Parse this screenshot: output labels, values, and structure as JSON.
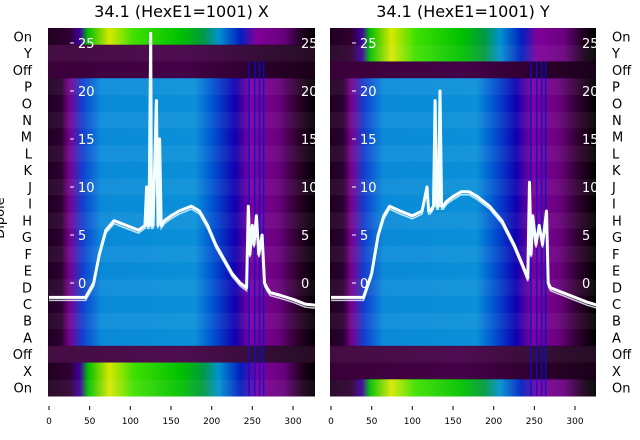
{
  "chart_data": [
    {
      "type": "heatmap",
      "title": "34.1 (HexE1=1001) X",
      "ylabel": "Dipole",
      "row_labels": [
        "On",
        "Y",
        "Off",
        "P",
        "O",
        "N",
        "M",
        "L",
        "K",
        "J",
        "I",
        "H",
        "G",
        "F",
        "E",
        "D",
        "C",
        "B",
        "A",
        "Off",
        "X",
        "On"
      ],
      "bright_rows": [
        0,
        20,
        21
      ],
      "xlim": [
        0,
        327
      ],
      "x_ticks": [
        0,
        50,
        100,
        150,
        200,
        250,
        300
      ],
      "overlay_ylim": [
        -11.8,
        26.6
      ],
      "overlay_ticks": [
        0,
        5,
        10,
        15,
        20,
        25
      ],
      "line": {
        "x": [
          0,
          20,
          45,
          55,
          62,
          70,
          80,
          95,
          110,
          118,
          120,
          121,
          123,
          125,
          126,
          128,
          132,
          134,
          136,
          138,
          142,
          150,
          160,
          175,
          185,
          195,
          205,
          215,
          225,
          235,
          243,
          245,
          247,
          250,
          252,
          255,
          258,
          262,
          265,
          268,
          272,
          285,
          300,
          315,
          327
        ],
        "y": [
          -1.5,
          -1.5,
          -1.5,
          0,
          3,
          5.5,
          6.5,
          6,
          5.5,
          6,
          10,
          6,
          6,
          26,
          6,
          6,
          19,
          6,
          15,
          6,
          6.5,
          7,
          7.5,
          8,
          7.5,
          6,
          4,
          2.5,
          1,
          0,
          -0.5,
          8,
          3,
          6,
          4,
          7,
          3,
          5,
          0,
          -0.5,
          -1,
          -1.3,
          -1.7,
          -2.2,
          -2.3
        ]
      }
    },
    {
      "type": "heatmap",
      "title": "34.1 (HexE1=1001) Y",
      "row_labels": [
        "On",
        "Y",
        "Off",
        "P",
        "O",
        "N",
        "M",
        "L",
        "K",
        "J",
        "I",
        "H",
        "G",
        "F",
        "E",
        "D",
        "C",
        "B",
        "A",
        "Off",
        "X",
        "On"
      ],
      "bright_rows": [
        0,
        1,
        21
      ],
      "xlim": [
        0,
        327
      ],
      "x_ticks": [
        0,
        50,
        100,
        150,
        200,
        250,
        300
      ],
      "overlay_ylim": [
        -11.8,
        26.6
      ],
      "overlay_ticks": [
        0,
        5,
        10,
        15,
        20,
        25
      ],
      "line": {
        "x": [
          0,
          20,
          40,
          50,
          58,
          65,
          72,
          85,
          100,
          112,
          118,
          120,
          122,
          126,
          128,
          130,
          132,
          134,
          136,
          138,
          142,
          150,
          160,
          170,
          180,
          195,
          210,
          225,
          235,
          242,
          244,
          246,
          248,
          252,
          256,
          260,
          265,
          267,
          270,
          285,
          300,
          315,
          327
        ],
        "y": [
          -1.5,
          -1.5,
          -1.5,
          1,
          5,
          7,
          8,
          7.5,
          7,
          7.5,
          10,
          7.5,
          7.5,
          8,
          19,
          8,
          8,
          20,
          8,
          8,
          8.5,
          9,
          9.5,
          9.5,
          9,
          8,
          6.5,
          4,
          2,
          0.5,
          10.5,
          3,
          7,
          4,
          6,
          4,
          7.5,
          0,
          -0.5,
          -1,
          -1.5,
          -2,
          -2.3
        ]
      }
    }
  ]
}
